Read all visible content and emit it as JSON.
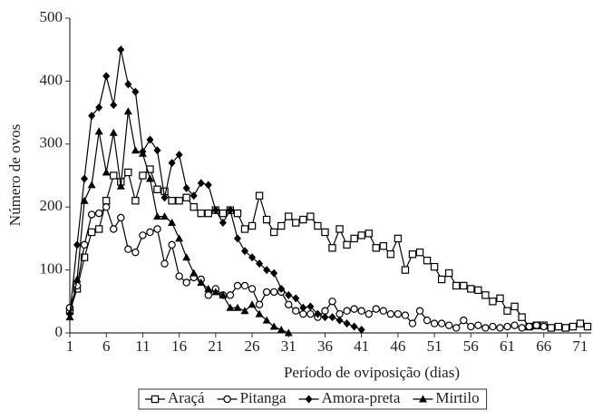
{
  "chart_data": {
    "type": "line",
    "xlabel": "Período de oviposição (dias)",
    "ylabel": "Número de ovos",
    "x": [
      1,
      2,
      3,
      4,
      5,
      6,
      7,
      8,
      9,
      10,
      11,
      12,
      13,
      14,
      15,
      16,
      17,
      18,
      19,
      20,
      21,
      22,
      23,
      24,
      25,
      26,
      27,
      28,
      29,
      30,
      31,
      32,
      33,
      34,
      35,
      36,
      37,
      38,
      39,
      40,
      41,
      42,
      43,
      44,
      45,
      46,
      47,
      48,
      49,
      50,
      51,
      52,
      53,
      54,
      55,
      56,
      57,
      58,
      59,
      60,
      61,
      62,
      63,
      64,
      65,
      66,
      67,
      68,
      69,
      70,
      71,
      72
    ],
    "series": [
      {
        "name": "Araçá",
        "color": "#000000",
        "marker": "square",
        "values": [
          35,
          70,
          120,
          160,
          165,
          210,
          250,
          240,
          255,
          210,
          250,
          260,
          228,
          225,
          210,
          210,
          215,
          200,
          190,
          190,
          195,
          190,
          195,
          190,
          165,
          170,
          218,
          180,
          160,
          170,
          185,
          175,
          180,
          185,
          170,
          160,
          135,
          165,
          140,
          150,
          155,
          158,
          135,
          138,
          125,
          150,
          100,
          125,
          128,
          115,
          105,
          85,
          95,
          75,
          75,
          70,
          68,
          60,
          50,
          55,
          35,
          42,
          25,
          10,
          12,
          12,
          8,
          10,
          8,
          10,
          15,
          10
        ]
      },
      {
        "name": "Pitanga",
        "color": "#000000",
        "marker": "circle",
        "values": [
          40,
          75,
          140,
          188,
          190,
          200,
          165,
          183,
          133,
          128,
          155,
          160,
          165,
          110,
          140,
          90,
          80,
          88,
          85,
          60,
          70,
          60,
          60,
          75,
          75,
          70,
          45,
          65,
          65,
          65,
          45,
          35,
          30,
          30,
          25,
          35,
          50,
          30,
          35,
          38,
          35,
          30,
          38,
          35,
          30,
          30,
          28,
          15,
          35,
          20,
          15,
          15,
          12,
          8,
          20,
          10,
          12,
          8,
          10,
          8,
          10,
          12,
          8,
          10,
          12,
          10,
          null,
          null,
          null,
          null,
          null,
          null
        ]
      },
      {
        "name": "Amora-preta",
        "color": "#000000",
        "marker": "diamond",
        "values": [
          30,
          140,
          245,
          345,
          358,
          408,
          362,
          450,
          395,
          383,
          288,
          307,
          290,
          215,
          270,
          283,
          230,
          218,
          238,
          235,
          195,
          175,
          195,
          150,
          130,
          120,
          110,
          100,
          95,
          70,
          60,
          55,
          40,
          42,
          30,
          25,
          25,
          20,
          15,
          10,
          5,
          null,
          null,
          null,
          null,
          null,
          null,
          null,
          null,
          null,
          null,
          null,
          null,
          null,
          null,
          null,
          null,
          null,
          null,
          null,
          null,
          null,
          null,
          null,
          null,
          null,
          null,
          null,
          null,
          null,
          null,
          null
        ]
      },
      {
        "name": "Mirtilo",
        "color": "#000000",
        "marker": "triangle",
        "values": [
          25,
          85,
          210,
          235,
          320,
          255,
          318,
          233,
          352,
          290,
          285,
          245,
          185,
          185,
          175,
          150,
          120,
          95,
          80,
          70,
          65,
          60,
          40,
          40,
          35,
          45,
          30,
          20,
          10,
          5,
          0,
          null,
          null,
          null,
          null,
          null,
          null,
          null,
          null,
          null,
          null,
          null,
          null,
          null,
          null,
          null,
          null,
          null,
          null,
          null,
          null,
          null,
          null,
          null,
          null,
          null,
          null,
          null,
          null,
          null,
          null,
          null,
          null,
          null,
          null,
          null,
          null,
          null,
          null,
          null,
          null,
          null
        ]
      }
    ],
    "xlim": [
      1,
      72.5
    ],
    "ylim": [
      0,
      500
    ],
    "xticks": [
      1,
      6,
      11,
      16,
      21,
      26,
      31,
      36,
      41,
      46,
      51,
      56,
      61,
      66,
      71
    ],
    "yticks": [
      0,
      100,
      200,
      300,
      400,
      500
    ],
    "legend": "bottom"
  }
}
